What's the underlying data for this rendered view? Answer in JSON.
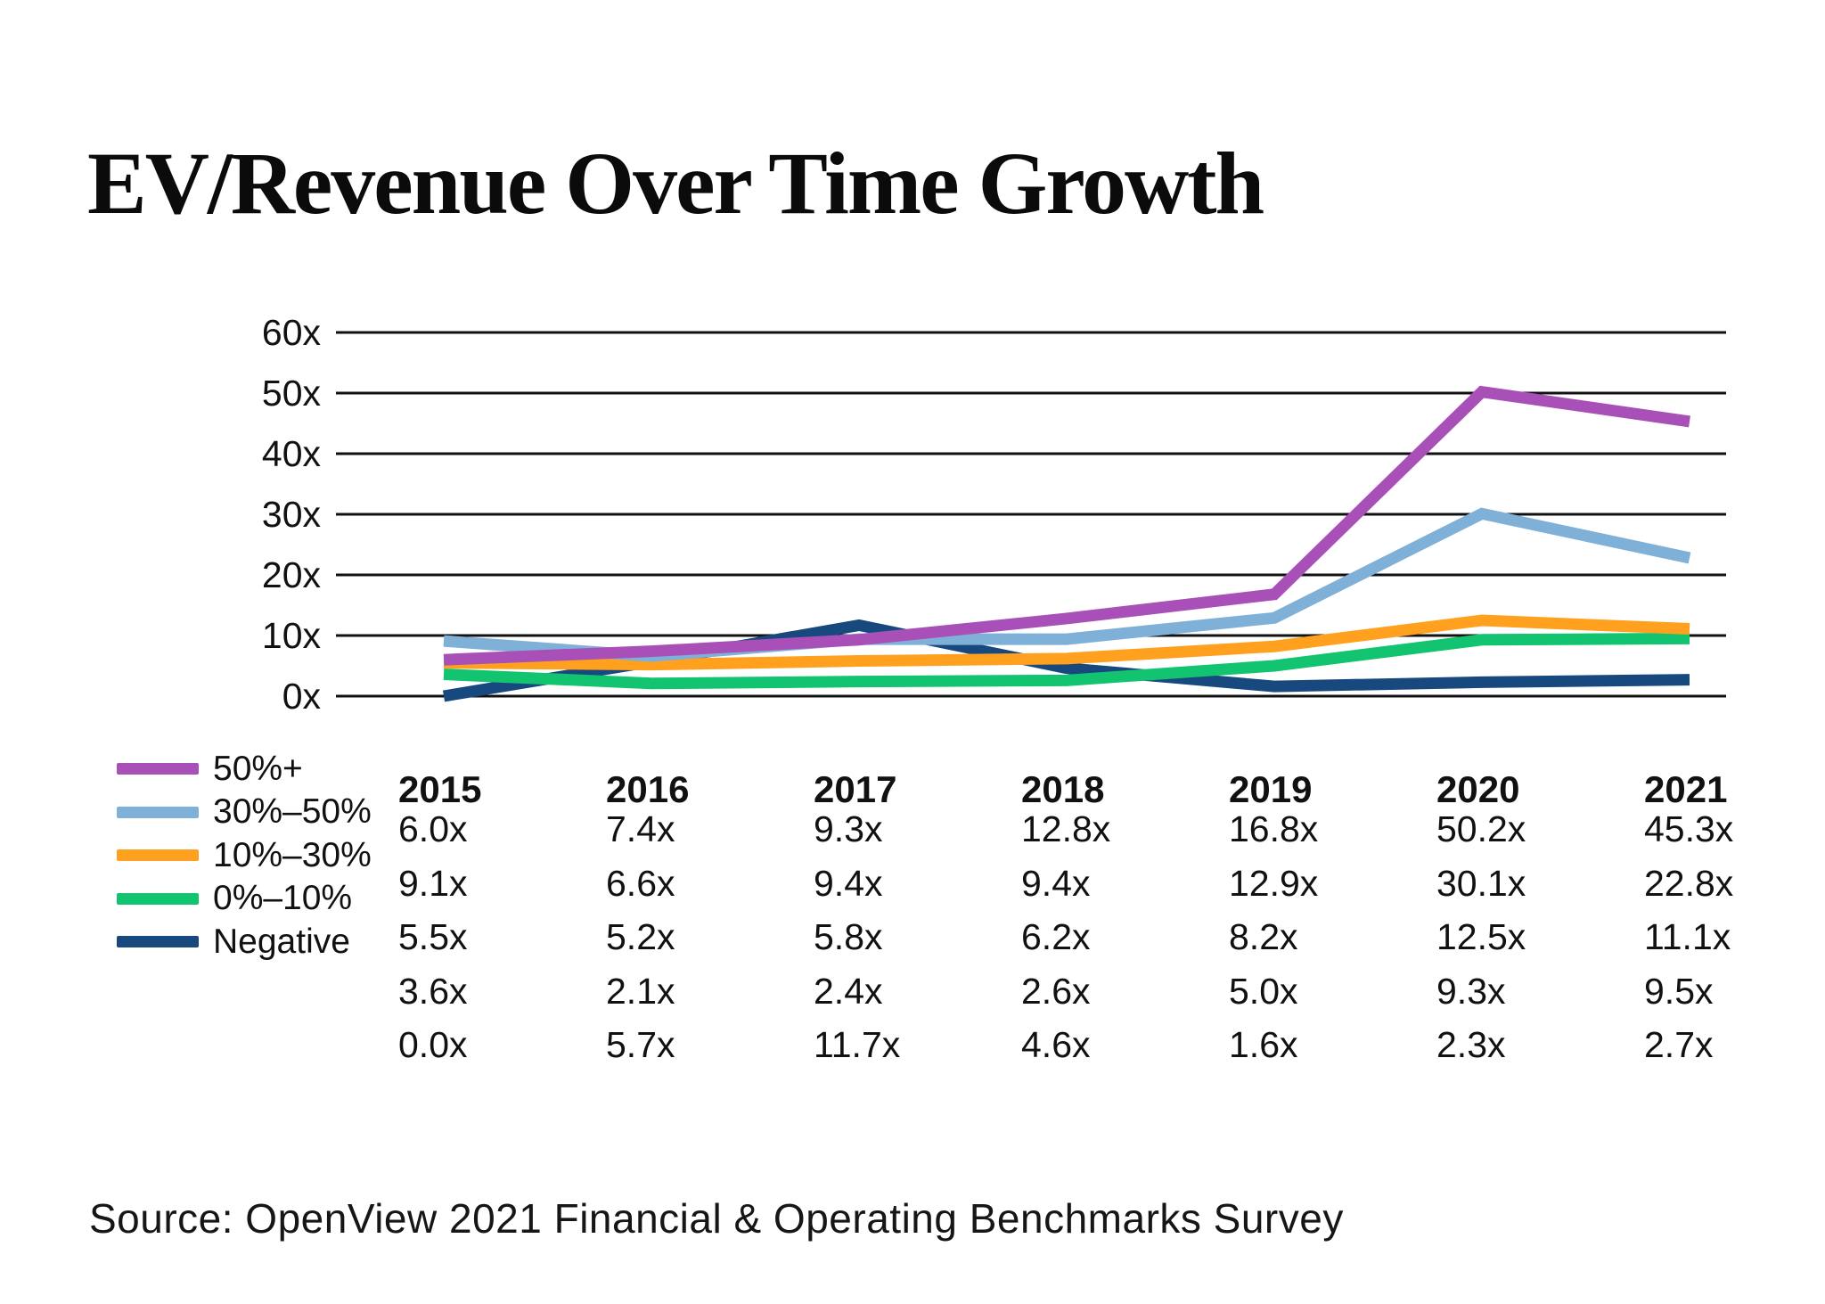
{
  "page": {
    "title": "EV/Revenue Over Time Growth",
    "source": "Source: OpenView 2021 Financial & Operating Benchmarks Survey"
  },
  "chart_data": {
    "type": "line",
    "title": "EV/Revenue Over Time Growth",
    "categories": [
      "2015",
      "2016",
      "2017",
      "2018",
      "2019",
      "2020",
      "2021"
    ],
    "y_ticks": [
      "60x",
      "50x",
      "40x",
      "30x",
      "20x",
      "10x",
      "0x"
    ],
    "ylim": [
      0,
      60
    ],
    "y_step": 10,
    "grid": "horizontal",
    "gridline_color": "#111111",
    "legend_position": "bottom-left",
    "value_suffix": "x",
    "series": [
      {
        "name": "50%+",
        "color": "#A94FB8",
        "values": [
          6.0,
          7.4,
          9.3,
          12.8,
          16.8,
          50.2,
          45.3
        ]
      },
      {
        "name": "30%–50%",
        "color": "#7FB0D7",
        "values": [
          9.1,
          6.6,
          9.4,
          9.4,
          12.9,
          30.1,
          22.8
        ]
      },
      {
        "name": "10%–30%",
        "color": "#FFA01E",
        "values": [
          5.5,
          5.2,
          5.8,
          6.2,
          8.2,
          12.5,
          11.1
        ]
      },
      {
        "name": "0%–10%",
        "color": "#12C46F",
        "values": [
          3.6,
          2.1,
          2.4,
          2.6,
          5.0,
          9.3,
          9.5
        ]
      },
      {
        "name": "Negative",
        "color": "#17497F",
        "values": [
          0.0,
          5.7,
          11.7,
          4.6,
          1.6,
          2.3,
          2.7
        ]
      }
    ]
  },
  "table": {
    "columns": [
      "2015",
      "2016",
      "2017",
      "2018",
      "2019",
      "2020",
      "2021"
    ],
    "rows": [
      [
        "6.0x",
        "7.4x",
        "9.3x",
        "12.8x",
        "16.8x",
        "50.2x",
        "45.3x"
      ],
      [
        "9.1x",
        "6.6x",
        "9.4x",
        "9.4x",
        "12.9x",
        "30.1x",
        "22.8x"
      ],
      [
        "5.5x",
        "5.2x",
        "5.8x",
        "6.2x",
        "8.2x",
        "12.5x",
        "11.1x"
      ],
      [
        "3.6x",
        "2.1x",
        "2.4x",
        "2.6x",
        "5.0x",
        "9.3x",
        "9.5x"
      ],
      [
        "0.0x",
        "5.7x",
        "11.7x",
        "4.6x",
        "1.6x",
        "2.3x",
        "2.7x"
      ]
    ]
  }
}
